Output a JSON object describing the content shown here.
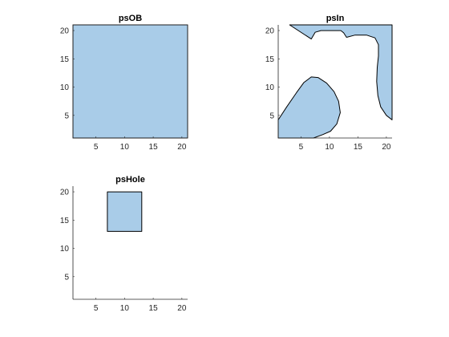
{
  "fill_color": "#a9cce8",
  "chart_data": [
    {
      "type": "area",
      "title": "psOB",
      "xlim": [
        1,
        21
      ],
      "ylim": [
        1,
        21
      ],
      "xticks": [
        5,
        10,
        15,
        20
      ],
      "yticks": [
        5,
        10,
        15,
        20
      ],
      "box": true,
      "polygons": [
        [
          [
            1,
            1
          ],
          [
            21,
            1
          ],
          [
            21,
            21
          ],
          [
            1,
            21
          ]
        ]
      ]
    },
    {
      "type": "area",
      "title": "psIn",
      "xlim": [
        1,
        21
      ],
      "ylim": [
        1,
        21
      ],
      "xticks": [
        5,
        10,
        15,
        20
      ],
      "yticks": [
        5,
        10,
        15,
        20
      ],
      "box": false,
      "polygons": [
        [
          [
            3,
            21
          ],
          [
            21,
            21
          ],
          [
            21,
            4.2
          ],
          [
            20,
            5
          ],
          [
            19,
            6.5
          ],
          [
            18.5,
            8.5
          ],
          [
            18.3,
            11
          ],
          [
            18.4,
            13.5
          ],
          [
            18.6,
            15.5
          ],
          [
            18.6,
            17.5
          ],
          [
            18,
            18.7
          ],
          [
            16.5,
            19.2
          ],
          [
            14.5,
            19.2
          ],
          [
            13,
            18.8
          ],
          [
            12.5,
            19.6
          ],
          [
            12,
            20
          ],
          [
            8.5,
            20
          ],
          [
            7.5,
            19.7
          ],
          [
            6.8,
            18.5
          ]
        ],
        [
          [
            1,
            1
          ],
          [
            1,
            4.2
          ],
          [
            2.5,
            6.5
          ],
          [
            4.2,
            9
          ],
          [
            5.5,
            10.8
          ],
          [
            6.8,
            11.8
          ],
          [
            8,
            11.7
          ],
          [
            9.5,
            10.7
          ],
          [
            10.8,
            9.2
          ],
          [
            11.6,
            7.5
          ],
          [
            11.9,
            5.5
          ],
          [
            11.3,
            3.5
          ],
          [
            10.2,
            2.2
          ],
          [
            8.8,
            1.6
          ],
          [
            7.2,
            1
          ]
        ]
      ]
    },
    {
      "type": "area",
      "title": "psHole",
      "xlim": [
        1,
        21
      ],
      "ylim": [
        1,
        21
      ],
      "xticks": [
        5,
        10,
        15,
        20
      ],
      "yticks": [
        5,
        10,
        15,
        20
      ],
      "box": false,
      "polygons": [
        [
          [
            7,
            13
          ],
          [
            13,
            13
          ],
          [
            13,
            20
          ],
          [
            7,
            20
          ]
        ]
      ]
    }
  ]
}
